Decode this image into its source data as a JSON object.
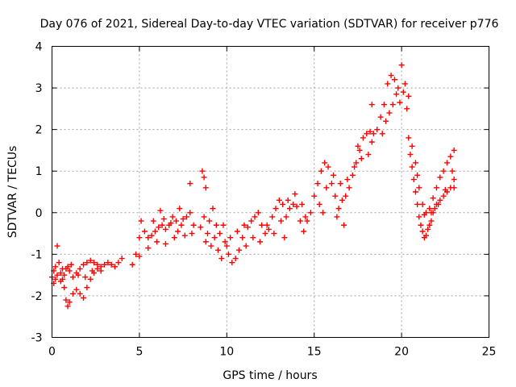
{
  "chart_data": {
    "type": "scatter",
    "title": "Day 076 of 2021, Sidereal Day-to-day VTEC variation (SDTVAR) for receiver p776",
    "xlabel": "GPS time / hours",
    "ylabel": "SDTVAR / TECUs",
    "xlim": [
      0,
      25
    ],
    "ylim": [
      -3,
      4
    ],
    "xticks": [
      "0",
      "5",
      "10",
      "15",
      "20",
      "25"
    ],
    "yticks": [
      "-3",
      "-2",
      "-1",
      "0",
      "1",
      "2",
      "3",
      "4"
    ],
    "xtick_values": [
      0,
      5,
      10,
      15,
      20,
      25
    ],
    "ytick_values": [
      -3,
      -2,
      -1,
      0,
      1,
      2,
      3,
      4
    ],
    "grid": true,
    "marker": "+",
    "series_color": "#ff0000",
    "series": [
      {
        "name": "p776",
        "points": [
          [
            0.0,
            -1.55
          ],
          [
            0.1,
            -1.7
          ],
          [
            0.2,
            -1.3
          ],
          [
            0.3,
            -0.8
          ],
          [
            0.4,
            -1.2
          ],
          [
            0.5,
            -1.45
          ],
          [
            0.6,
            -1.6
          ],
          [
            0.7,
            -1.5
          ],
          [
            0.8,
            -1.35
          ],
          [
            0.9,
            -1.3
          ],
          [
            1.0,
            -1.4
          ],
          [
            1.2,
            -1.55
          ],
          [
            1.4,
            -1.45
          ],
          [
            1.6,
            -1.35
          ],
          [
            1.8,
            -1.25
          ],
          [
            2.0,
            -1.2
          ],
          [
            2.2,
            -1.15
          ],
          [
            2.4,
            -1.2
          ],
          [
            2.6,
            -1.25
          ],
          [
            2.8,
            -1.3
          ],
          [
            3.0,
            -1.25
          ],
          [
            3.2,
            -1.2
          ],
          [
            3.4,
            -1.25
          ],
          [
            3.6,
            -1.3
          ],
          [
            3.8,
            -1.2
          ],
          [
            4.0,
            -1.1
          ],
          [
            0.1,
            -1.4
          ],
          [
            0.3,
            -1.5
          ],
          [
            0.5,
            -1.65
          ],
          [
            0.7,
            -1.8
          ],
          [
            0.8,
            -2.1
          ],
          [
            0.9,
            -2.25
          ],
          [
            1.0,
            -2.15
          ],
          [
            1.2,
            -1.95
          ],
          [
            1.4,
            -1.85
          ],
          [
            1.6,
            -1.95
          ],
          [
            1.8,
            -2.05
          ],
          [
            2.0,
            -1.8
          ],
          [
            2.2,
            -1.6
          ],
          [
            2.4,
            -1.45
          ],
          [
            2.6,
            -1.35
          ],
          [
            2.8,
            -1.4
          ],
          [
            0.2,
            -1.6
          ],
          [
            0.6,
            -1.35
          ],
          [
            1.1,
            -1.25
          ],
          [
            1.5,
            -1.5
          ],
          [
            1.9,
            -1.55
          ],
          [
            2.3,
            -1.4
          ],
          [
            4.6,
            -1.25
          ],
          [
            4.8,
            -1.0
          ],
          [
            5.0,
            -0.6
          ],
          [
            5.1,
            -0.2
          ],
          [
            5.3,
            -0.45
          ],
          [
            5.5,
            -0.6
          ],
          [
            5.7,
            -0.55
          ],
          [
            5.9,
            -0.45
          ],
          [
            6.1,
            -0.35
          ],
          [
            6.3,
            -0.3
          ],
          [
            6.5,
            -0.4
          ],
          [
            6.7,
            -0.3
          ],
          [
            6.9,
            -0.1
          ],
          [
            7.1,
            -0.2
          ],
          [
            7.3,
            0.1
          ],
          [
            7.5,
            -0.15
          ],
          [
            7.7,
            -0.1
          ],
          [
            7.9,
            0.0
          ],
          [
            8.1,
            -0.3
          ],
          [
            7.0,
            -0.6
          ],
          [
            6.5,
            -0.75
          ],
          [
            6.0,
            -0.7
          ],
          [
            5.5,
            -0.85
          ],
          [
            5.0,
            -1.05
          ],
          [
            5.8,
            -0.2
          ],
          [
            6.2,
            0.05
          ],
          [
            6.8,
            -0.25
          ],
          [
            7.2,
            -0.45
          ],
          [
            7.6,
            -0.55
          ],
          [
            8.0,
            -0.5
          ],
          [
            6.4,
            -0.15
          ],
          [
            7.4,
            -0.3
          ],
          [
            7.9,
            0.7
          ],
          [
            8.6,
            1.0
          ],
          [
            8.7,
            0.85
          ],
          [
            8.8,
            0.6
          ],
          [
            8.5,
            -0.35
          ],
          [
            8.7,
            -0.1
          ],
          [
            8.9,
            -0.5
          ],
          [
            9.1,
            -0.8
          ],
          [
            9.3,
            -0.6
          ],
          [
            9.5,
            -0.9
          ],
          [
            9.7,
            -1.1
          ],
          [
            9.9,
            -0.7
          ],
          [
            9.2,
            0.1
          ],
          [
            9.4,
            -0.3
          ],
          [
            9.6,
            -0.5
          ],
          [
            9.8,
            -0.3
          ],
          [
            8.8,
            -0.7
          ],
          [
            9.0,
            -0.2
          ],
          [
            10.0,
            -0.8
          ],
          [
            10.1,
            -1.0
          ],
          [
            10.3,
            -1.2
          ],
          [
            10.5,
            -1.1
          ],
          [
            10.7,
            -0.9
          ],
          [
            10.9,
            -0.6
          ],
          [
            11.0,
            -0.3
          ],
          [
            11.2,
            -0.35
          ],
          [
            11.4,
            -0.2
          ],
          [
            11.6,
            -0.1
          ],
          [
            11.8,
            0.0
          ],
          [
            12.0,
            -0.3
          ],
          [
            12.2,
            -0.5
          ],
          [
            12.4,
            -0.4
          ],
          [
            12.6,
            -0.1
          ],
          [
            12.8,
            0.1
          ],
          [
            13.0,
            0.3
          ],
          [
            13.2,
            0.2
          ],
          [
            13.4,
            -0.1
          ],
          [
            13.6,
            0.1
          ],
          [
            13.8,
            0.2
          ],
          [
            14.0,
            0.15
          ],
          [
            14.2,
            -0.2
          ],
          [
            14.4,
            -0.45
          ],
          [
            14.6,
            -0.2
          ],
          [
            14.8,
            0.0
          ],
          [
            10.2,
            -0.6
          ],
          [
            10.6,
            -0.45
          ],
          [
            11.1,
            -0.8
          ],
          [
            11.5,
            -0.6
          ],
          [
            11.9,
            -0.7
          ],
          [
            12.3,
            -0.3
          ],
          [
            12.7,
            -0.5
          ],
          [
            13.1,
            -0.2
          ],
          [
            13.5,
            0.3
          ],
          [
            13.9,
            0.45
          ],
          [
            14.3,
            0.2
          ],
          [
            13.3,
            -0.6
          ],
          [
            14.5,
            -0.1
          ],
          [
            15.0,
            0.4
          ],
          [
            15.2,
            0.7
          ],
          [
            15.4,
            1.0
          ],
          [
            15.6,
            1.2
          ],
          [
            15.8,
            1.1
          ],
          [
            16.0,
            0.7
          ],
          [
            16.2,
            0.4
          ],
          [
            16.4,
            0.1
          ],
          [
            16.6,
            0.3
          ],
          [
            16.8,
            0.4
          ],
          [
            17.0,
            0.6
          ],
          [
            17.2,
            0.9
          ],
          [
            17.4,
            1.2
          ],
          [
            17.6,
            1.5
          ],
          [
            17.8,
            1.8
          ],
          [
            18.0,
            1.9
          ],
          [
            18.2,
            1.95
          ],
          [
            18.4,
            1.9
          ],
          [
            15.3,
            0.2
          ],
          [
            15.7,
            0.6
          ],
          [
            16.1,
            0.9
          ],
          [
            16.5,
            0.7
          ],
          [
            16.9,
            0.8
          ],
          [
            17.3,
            1.1
          ],
          [
            17.7,
            1.3
          ],
          [
            18.1,
            1.4
          ],
          [
            16.3,
            -0.1
          ],
          [
            16.7,
            -0.3
          ],
          [
            17.5,
            1.6
          ],
          [
            18.3,
            1.7
          ],
          [
            15.5,
            0.0
          ],
          [
            18.3,
            2.6
          ],
          [
            18.6,
            2.0
          ],
          [
            18.8,
            2.3
          ],
          [
            19.0,
            2.6
          ],
          [
            19.2,
            3.1
          ],
          [
            19.4,
            3.3
          ],
          [
            19.6,
            3.2
          ],
          [
            19.8,
            3.0
          ],
          [
            20.0,
            3.55
          ],
          [
            20.2,
            3.1
          ],
          [
            20.4,
            2.8
          ],
          [
            19.3,
            2.4
          ],
          [
            19.5,
            2.6
          ],
          [
            19.7,
            2.85
          ],
          [
            19.9,
            2.65
          ],
          [
            20.1,
            2.9
          ],
          [
            20.3,
            2.5
          ],
          [
            19.1,
            2.2
          ],
          [
            18.9,
            1.9
          ],
          [
            20.4,
            1.8
          ],
          [
            20.5,
            1.4
          ],
          [
            20.6,
            1.1
          ],
          [
            20.7,
            0.8
          ],
          [
            20.8,
            0.5
          ],
          [
            20.9,
            0.2
          ],
          [
            21.0,
            -0.1
          ],
          [
            21.1,
            -0.3
          ],
          [
            21.2,
            -0.45
          ],
          [
            21.3,
            -0.6
          ],
          [
            21.4,
            -0.55
          ],
          [
            21.5,
            -0.4
          ],
          [
            21.6,
            -0.3
          ],
          [
            21.7,
            -0.2
          ],
          [
            21.8,
            0.0
          ],
          [
            21.9,
            0.1
          ],
          [
            22.0,
            0.2
          ],
          [
            22.2,
            0.3
          ],
          [
            22.4,
            0.4
          ],
          [
            22.6,
            0.5
          ],
          [
            22.8,
            0.6
          ],
          [
            23.0,
            0.8
          ],
          [
            20.6,
            1.6
          ],
          [
            20.8,
            1.2
          ],
          [
            21.0,
            0.6
          ],
          [
            21.2,
            0.2
          ],
          [
            21.4,
            0.0
          ],
          [
            21.6,
            0.1
          ],
          [
            21.8,
            0.35
          ],
          [
            22.0,
            0.6
          ],
          [
            22.2,
            0.85
          ],
          [
            22.4,
            1.0
          ],
          [
            22.6,
            1.2
          ],
          [
            22.8,
            1.35
          ],
          [
            23.0,
            1.5
          ],
          [
            20.9,
            0.9
          ],
          [
            21.3,
            -0.05
          ],
          [
            21.7,
            0.0
          ],
          [
            22.1,
            0.2
          ],
          [
            22.5,
            0.55
          ],
          [
            22.9,
            1.0
          ],
          [
            23.0,
            0.6
          ]
        ]
      }
    ]
  }
}
